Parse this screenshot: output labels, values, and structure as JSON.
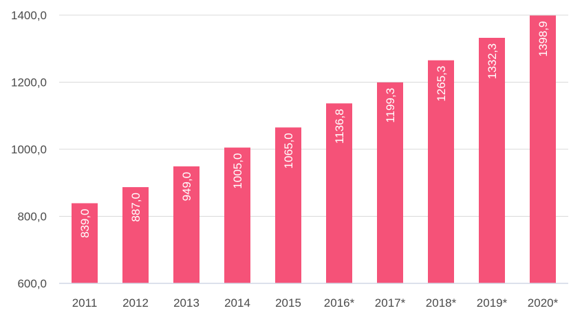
{
  "chart_data": {
    "type": "bar",
    "categories": [
      "2011",
      "2012",
      "2013",
      "2014",
      "2015",
      "2016*",
      "2017*",
      "2018*",
      "2019*",
      "2020*"
    ],
    "values": [
      839.0,
      887.0,
      949.0,
      1005.0,
      1065.0,
      1136.8,
      1199.3,
      1265.3,
      1332.3,
      1398.9
    ],
    "value_labels": [
      "839,0",
      "887,0",
      "949,0",
      "1005,0",
      "1065,0",
      "1136,8",
      "1199,3",
      "1265,3",
      "1332,3",
      "1398,9"
    ],
    "y_ticks": [
      600,
      800,
      1000,
      1200,
      1400
    ],
    "y_tick_labels": [
      "600,0",
      "800,0",
      "1000,0",
      "1200,0",
      "1400,0"
    ],
    "ylim": [
      600,
      1400
    ],
    "grid": true,
    "legend": "none",
    "data_label_orientation": "vertical",
    "colors": {
      "bar": "#f55278",
      "grid": "#d9d9d9",
      "axis": "#d0d7e5",
      "label_text": "#ffffff",
      "tick_text": "#4a4a4a"
    }
  }
}
